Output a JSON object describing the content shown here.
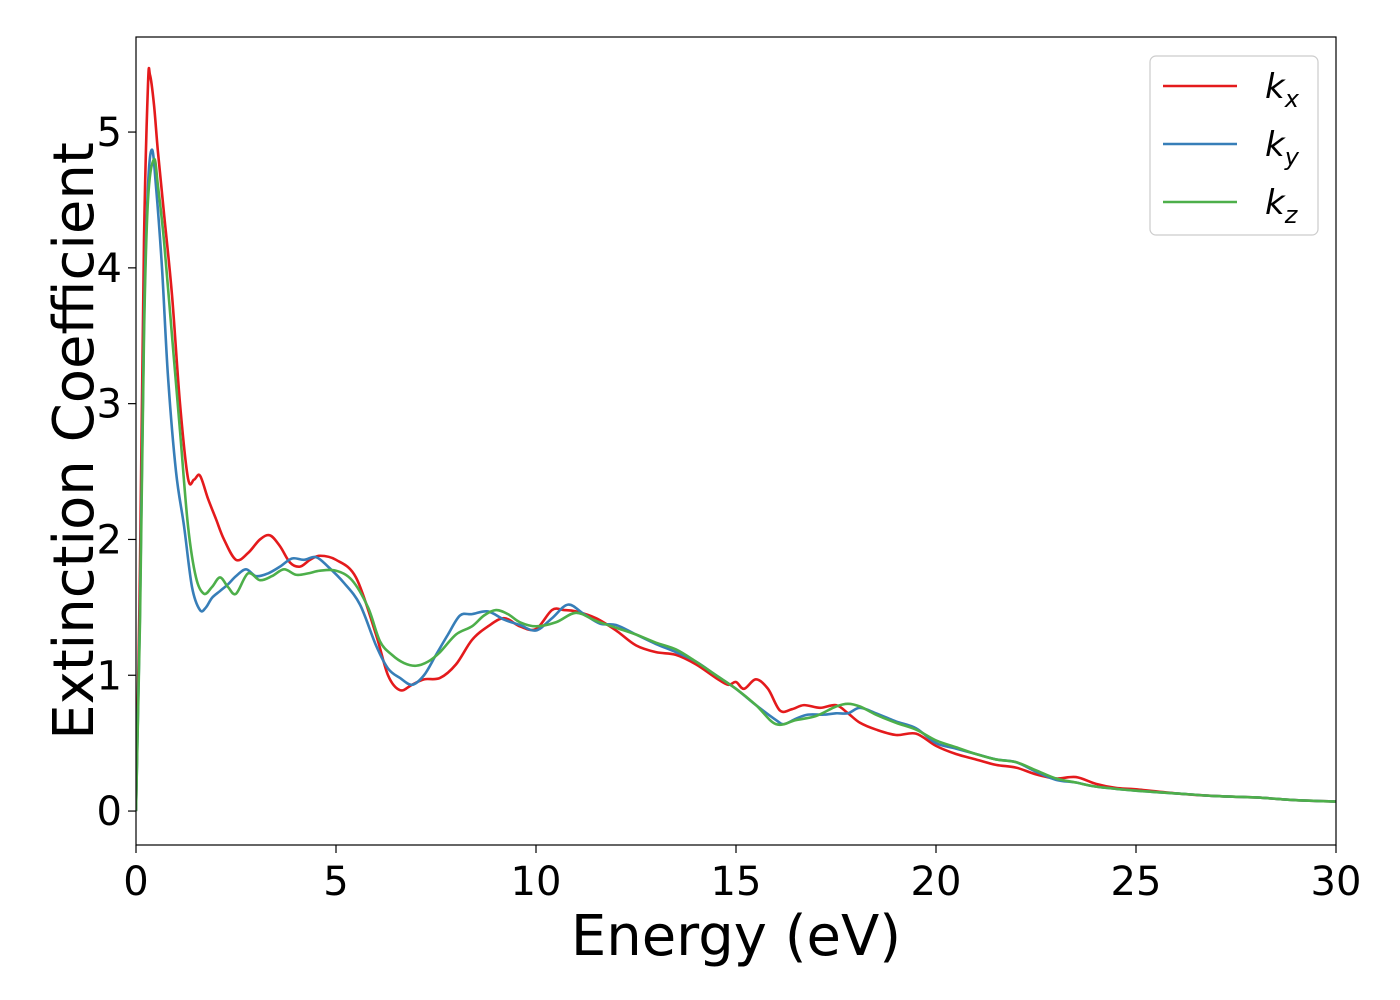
{
  "chart_data": {
    "type": "line",
    "xlabel": "Energy (eV)",
    "ylabel": "Extinction Coefficient",
    "xlim": [
      0,
      30
    ],
    "ylim": [
      -0.25,
      5.7
    ],
    "xticks": [
      0,
      5,
      10,
      15,
      20,
      25,
      30
    ],
    "xtick_labels": [
      "0",
      "5",
      "10",
      "15",
      "20",
      "25",
      "30"
    ],
    "yticks": [
      0,
      1,
      2,
      3,
      4,
      5
    ],
    "ytick_labels": [
      "0",
      "1",
      "2",
      "3",
      "4",
      "5"
    ],
    "grid": false,
    "legend_position": "top-right",
    "series": [
      {
        "name": "k",
        "subscript": "x",
        "color": "#e41a1c",
        "x": [
          0,
          0.1,
          0.2,
          0.3,
          0.35,
          0.45,
          0.55,
          0.7,
          0.9,
          1.1,
          1.3,
          1.45,
          1.6,
          1.8,
          2.0,
          2.2,
          2.5,
          2.8,
          3.1,
          3.35,
          3.6,
          3.85,
          4.1,
          4.35,
          4.6,
          5.0,
          5.5,
          6.0,
          6.3,
          6.6,
          6.9,
          7.2,
          7.6,
          8.0,
          8.4,
          8.8,
          9.2,
          9.6,
          10.0,
          10.4,
          10.7,
          11.0,
          11.5,
          12.0,
          12.5,
          13.0,
          13.5,
          14.0,
          14.5,
          14.8,
          15.0,
          15.2,
          15.5,
          15.8,
          16.1,
          16.4,
          16.7,
          17.1,
          17.5,
          17.8,
          18.1,
          18.5,
          19.0,
          19.5,
          20.0,
          20.5,
          21.0,
          21.5,
          22.0,
          22.5,
          23.0,
          23.5,
          24.0,
          24.5,
          25.0,
          26.0,
          27.0,
          28.0,
          29.0,
          30.0
        ],
        "y": [
          0.0,
          1.8,
          4.2,
          5.35,
          5.42,
          5.2,
          4.85,
          4.4,
          3.8,
          3.0,
          2.45,
          2.44,
          2.47,
          2.3,
          2.15,
          2.0,
          1.85,
          1.9,
          2.0,
          2.03,
          1.95,
          1.83,
          1.8,
          1.85,
          1.88,
          1.85,
          1.72,
          1.3,
          1.0,
          0.89,
          0.93,
          0.97,
          0.98,
          1.08,
          1.26,
          1.36,
          1.42,
          1.36,
          1.34,
          1.48,
          1.48,
          1.47,
          1.42,
          1.33,
          1.22,
          1.17,
          1.15,
          1.08,
          0.98,
          0.93,
          0.95,
          0.9,
          0.97,
          0.9,
          0.74,
          0.75,
          0.78,
          0.76,
          0.78,
          0.72,
          0.65,
          0.6,
          0.56,
          0.57,
          0.48,
          0.42,
          0.38,
          0.34,
          0.32,
          0.27,
          0.24,
          0.25,
          0.2,
          0.17,
          0.16,
          0.13,
          0.11,
          0.1,
          0.08,
          0.07
        ]
      },
      {
        "name": "k",
        "subscript": "y",
        "color": "#377eb8",
        "x": [
          0,
          0.1,
          0.2,
          0.3,
          0.4,
          0.5,
          0.65,
          0.8,
          1.0,
          1.2,
          1.4,
          1.6,
          1.75,
          1.9,
          2.1,
          2.3,
          2.5,
          2.75,
          3.0,
          3.3,
          3.6,
          3.9,
          4.2,
          4.5,
          4.8,
          5.2,
          5.6,
          6.0,
          6.3,
          6.6,
          6.9,
          7.2,
          7.5,
          7.8,
          8.1,
          8.4,
          8.8,
          9.2,
          9.6,
          10.0,
          10.4,
          10.8,
          11.2,
          11.6,
          12.0,
          12.5,
          13.0,
          13.5,
          14.0,
          14.5,
          15.0,
          15.5,
          16.0,
          16.2,
          16.5,
          16.8,
          17.2,
          17.5,
          17.8,
          18.1,
          18.5,
          19.0,
          19.5,
          20.0,
          20.5,
          21.0,
          21.5,
          22.0,
          22.5,
          23.0,
          23.5,
          24.0,
          25.0,
          26.0,
          27.0,
          28.0,
          29.0,
          30.0
        ],
        "y": [
          0.0,
          1.5,
          3.6,
          4.6,
          4.87,
          4.6,
          4.0,
          3.2,
          2.5,
          2.1,
          1.65,
          1.48,
          1.5,
          1.57,
          1.62,
          1.67,
          1.73,
          1.78,
          1.73,
          1.75,
          1.8,
          1.86,
          1.85,
          1.87,
          1.8,
          1.68,
          1.52,
          1.22,
          1.05,
          0.98,
          0.93,
          1.0,
          1.15,
          1.3,
          1.44,
          1.45,
          1.47,
          1.41,
          1.37,
          1.33,
          1.42,
          1.52,
          1.45,
          1.38,
          1.37,
          1.3,
          1.23,
          1.17,
          1.1,
          1.0,
          0.9,
          0.78,
          0.67,
          0.64,
          0.68,
          0.71,
          0.71,
          0.72,
          0.72,
          0.76,
          0.72,
          0.66,
          0.61,
          0.5,
          0.46,
          0.42,
          0.38,
          0.36,
          0.29,
          0.23,
          0.21,
          0.18,
          0.15,
          0.13,
          0.11,
          0.1,
          0.08,
          0.07
        ]
      },
      {
        "name": "k",
        "subscript": "z",
        "color": "#4daf4a",
        "x": [
          0,
          0.1,
          0.2,
          0.3,
          0.45,
          0.55,
          0.7,
          0.9,
          1.1,
          1.3,
          1.5,
          1.7,
          1.9,
          2.1,
          2.3,
          2.5,
          2.8,
          3.1,
          3.4,
          3.7,
          4.0,
          4.3,
          4.6,
          5.0,
          5.4,
          5.8,
          6.1,
          6.4,
          6.7,
          7.0,
          7.3,
          7.6,
          8.0,
          8.4,
          8.7,
          9.0,
          9.3,
          9.6,
          10.0,
          10.5,
          11.0,
          11.5,
          12.0,
          12.5,
          13.0,
          13.5,
          14.0,
          14.5,
          15.0,
          15.5,
          16.0,
          16.5,
          17.0,
          17.5,
          17.8,
          18.1,
          18.5,
          19.0,
          19.5,
          20.0,
          20.5,
          21.0,
          21.5,
          22.0,
          22.5,
          23.0,
          23.5,
          24.0,
          25.0,
          26.0,
          27.0,
          28.0,
          29.0,
          30.0
        ],
        "y": [
          0.0,
          1.4,
          3.5,
          4.5,
          4.8,
          4.6,
          4.2,
          3.5,
          2.8,
          2.1,
          1.72,
          1.6,
          1.65,
          1.72,
          1.65,
          1.6,
          1.75,
          1.7,
          1.73,
          1.78,
          1.74,
          1.75,
          1.77,
          1.77,
          1.7,
          1.5,
          1.25,
          1.15,
          1.09,
          1.07,
          1.1,
          1.17,
          1.3,
          1.36,
          1.44,
          1.48,
          1.45,
          1.39,
          1.36,
          1.39,
          1.46,
          1.4,
          1.35,
          1.3,
          1.24,
          1.19,
          1.1,
          1.0,
          0.9,
          0.78,
          0.64,
          0.67,
          0.7,
          0.77,
          0.79,
          0.77,
          0.71,
          0.65,
          0.6,
          0.52,
          0.47,
          0.42,
          0.38,
          0.36,
          0.3,
          0.24,
          0.21,
          0.18,
          0.15,
          0.13,
          0.11,
          0.1,
          0.08,
          0.07
        ]
      }
    ]
  }
}
